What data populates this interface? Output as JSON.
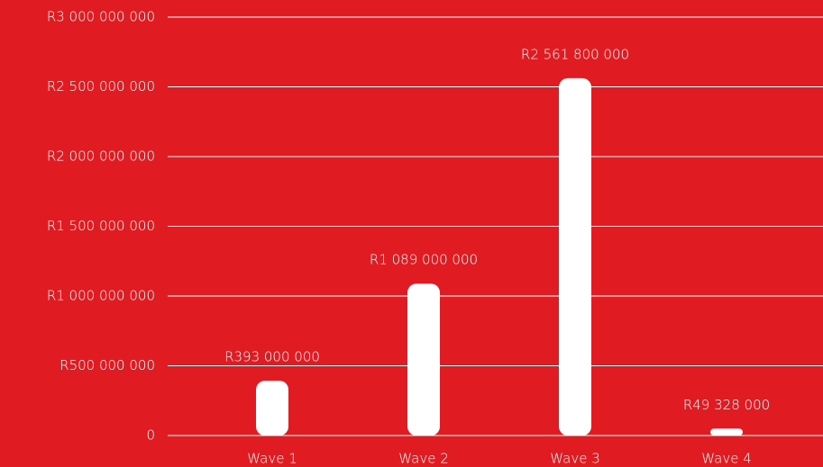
{
  "chart_data": {
    "type": "bar",
    "categories": [
      "Wave 1",
      "Wave 2",
      "Wave 3",
      "Wave 4"
    ],
    "values": [
      393000000,
      1089000000,
      2561800000,
      49328000
    ],
    "value_labels": [
      "R393 000 000",
      "R1 089 000 000",
      "R2 561 800 000",
      "R49 328 000"
    ],
    "color": "#ffffff",
    "ylim": [
      0,
      3000000000
    ],
    "yticks": [
      0,
      {
        "value": 500000000,
        "label": "R500 000 000"
      },
      {
        "value": 1000000000,
        "label": "R1 000 000 000"
      },
      {
        "value": 1500000000,
        "label": "R1 500 000 000"
      },
      {
        "value": 2000000000,
        "label": "R2 000 000 000"
      },
      {
        "value": 2500000000,
        "label": "R2 500 000 000"
      },
      {
        "value": 3000000000,
        "label": "R3 000 000 000"
      }
    ],
    "grid": true
  }
}
